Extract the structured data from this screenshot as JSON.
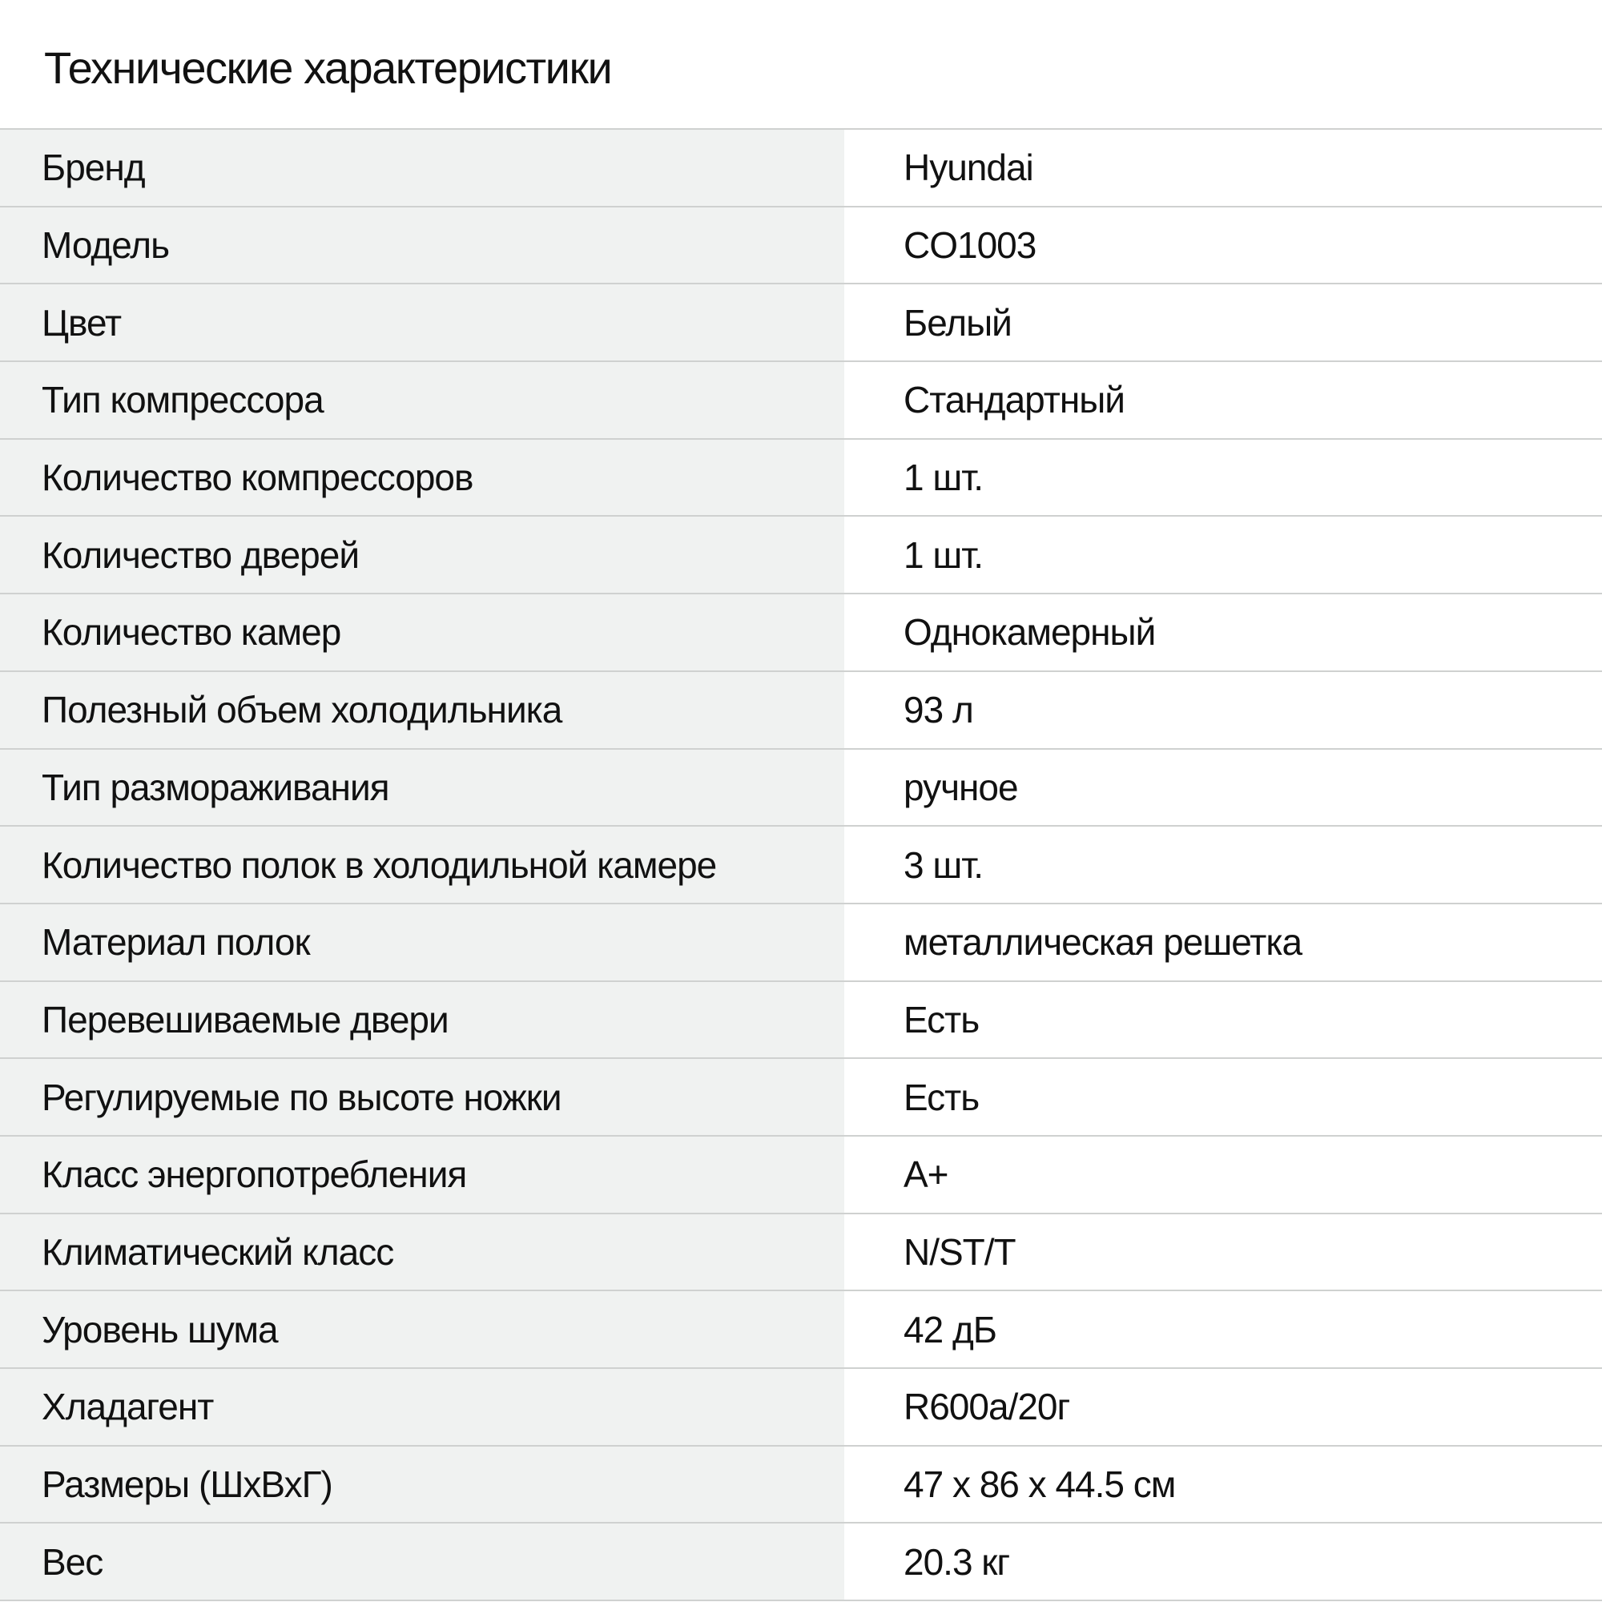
{
  "title": "Технические характеристики",
  "rows": [
    {
      "label": "Бренд",
      "value": "Hyundai"
    },
    {
      "label": "Модель",
      "value": "CO1003"
    },
    {
      "label": "Цвет",
      "value": "Белый"
    },
    {
      "label": "Тип компрессора",
      "value": "Стандартный"
    },
    {
      "label": "Количество компрессоров",
      "value": "1 шт."
    },
    {
      "label": "Количество дверей",
      "value": "1 шт."
    },
    {
      "label": "Количество камер",
      "value": "Однокамерный"
    },
    {
      "label": "Полезный объем холодильника",
      "value": "93 л"
    },
    {
      "label": "Тип размораживания",
      "value": "ручное"
    },
    {
      "label": "Количество полок в холодильной камере",
      "value": "3 шт."
    },
    {
      "label": "Материал полок",
      "value": "металлическая решетка"
    },
    {
      "label": "Перевешиваемые двери",
      "value": "Есть"
    },
    {
      "label": "Регулируемые по высоте ножки",
      "value": "Есть"
    },
    {
      "label": "Класс энергопотребления",
      "value": "A+"
    },
    {
      "label": "Климатический класс",
      "value": "N/ST/T"
    },
    {
      "label": "Уровень шума",
      "value": "42 дБ"
    },
    {
      "label": "Хладагент",
      "value": "R600a/20г"
    },
    {
      "label": "Размеры (ШхВхГ)",
      "value": "47 x 86 x 44.5 см"
    },
    {
      "label": "Вес",
      "value": "20.3 кг"
    }
  ]
}
